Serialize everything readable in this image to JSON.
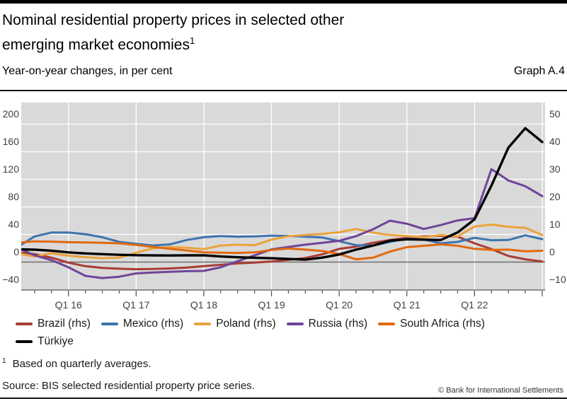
{
  "header": {
    "title_line1": "Nominal residential property prices in selected other",
    "title_line2": "emerging market economies",
    "title_footnote_marker": "1",
    "subtitle": "Year-on-year changes, in per cent",
    "graph_label": "Graph A.4"
  },
  "chart_data": {
    "type": "line",
    "title": "Nominal residential property prices in selected other emerging market economies",
    "ylabel_left": "Year-on-year changes, in per cent (Türkiye, lhs)",
    "ylabel_right": "Year-on-year changes, in per cent (rhs series)",
    "plot_bg": "#d9d9d9",
    "gridline_color": "#ffffff",
    "zero_line_color": "#6e6e6e",
    "axis_text_color": "#404040",
    "left_axis": {
      "ticks": [
        200,
        160,
        120,
        80,
        40,
        0,
        -40
      ],
      "tick_labels": [
        "200",
        "160",
        "120",
        "80",
        "40",
        "0",
        "−40"
      ],
      "range": [
        -41,
        231
      ]
    },
    "right_axis": {
      "ticks": [
        50,
        40,
        30,
        20,
        10,
        0,
        -10
      ],
      "tick_labels": [
        "50",
        "40",
        "30",
        "20",
        "10",
        "0",
        "−10"
      ],
      "range": [
        -10.25,
        57.75
      ]
    },
    "x_tick_labels": [
      "Q1 16",
      "Q1 17",
      "Q1 18",
      "Q1 19",
      "Q1 20",
      "Q1 21",
      "Q1 22"
    ],
    "quarters": [
      "Q2 15",
      "Q3 15",
      "Q4 15",
      "Q1 16",
      "Q2 16",
      "Q3 16",
      "Q4 16",
      "Q1 17",
      "Q2 17",
      "Q3 17",
      "Q4 17",
      "Q1 18",
      "Q2 18",
      "Q3 18",
      "Q4 18",
      "Q1 19",
      "Q2 19",
      "Q3 19",
      "Q4 19",
      "Q1 20",
      "Q2 20",
      "Q3 20",
      "Q4 20",
      "Q1 21",
      "Q2 21",
      "Q3 21",
      "Q4 21",
      "Q1 22",
      "Q2 22",
      "Q3 22",
      "Q4 22",
      "Q1 23"
    ],
    "series": [
      {
        "name": "Brazil (rhs)",
        "axis": "rhs",
        "color": "#a93c34",
        "values": [
          3.5,
          2.9,
          1.6,
          -0.2,
          -1.5,
          -2.1,
          -2.4,
          -2.6,
          -2.5,
          -2.3,
          -2.0,
          -1.5,
          -1.0,
          -0.5,
          -0.2,
          0.2,
          0.8,
          1.5,
          2.8,
          4.8,
          5.6,
          7.0,
          8.0,
          8.8,
          9.3,
          9.5,
          9.2,
          6.8,
          4.7,
          2.2,
          1.0,
          0.2
        ]
      },
      {
        "name": "Mexico (rhs)",
        "axis": "rhs",
        "color": "#3d74ae",
        "values": [
          5.5,
          9.3,
          10.7,
          10.7,
          10.1,
          9.0,
          7.3,
          6.6,
          6.0,
          6.4,
          8.0,
          9.0,
          9.4,
          9.2,
          9.3,
          9.6,
          9.5,
          9.2,
          8.9,
          7.6,
          6.1,
          6.0,
          7.3,
          8.5,
          8.2,
          6.8,
          7.3,
          8.8,
          7.9,
          8.0,
          9.7,
          8.3
        ]
      },
      {
        "name": "Poland (rhs)",
        "axis": "rhs",
        "color": "#eaa33c",
        "values": [
          3.1,
          2.0,
          3.2,
          2.3,
          1.8,
          1.4,
          1.6,
          3.4,
          5.0,
          5.4,
          5.2,
          4.7,
          6.0,
          6.3,
          6.1,
          8.1,
          9.4,
          9.8,
          10.2,
          10.8,
          12.0,
          10.7,
          9.8,
          9.4,
          9.0,
          9.8,
          9.3,
          12.9,
          13.6,
          12.8,
          12.4,
          9.8
        ]
      },
      {
        "name": "Russia (rhs)",
        "axis": "rhs",
        "color": "#6f4499",
        "values": [
          5.2,
          2.4,
          0.7,
          -1.9,
          -5.0,
          -5.8,
          -5.3,
          -4.1,
          -3.8,
          -3.5,
          -3.3,
          -3.2,
          -1.9,
          0.3,
          2.4,
          4.6,
          5.5,
          6.3,
          7.0,
          7.7,
          9.4,
          11.9,
          15.0,
          13.9,
          12.0,
          13.4,
          15.1,
          15.9,
          33.7,
          29.6,
          27.5,
          23.9
        ]
      },
      {
        "name": "South Africa (rhs)",
        "axis": "rhs",
        "color": "#e0690f",
        "values": [
          7.0,
          7.5,
          7.4,
          7.2,
          7.1,
          7.0,
          6.8,
          6.2,
          5.5,
          4.8,
          4.2,
          3.5,
          3.4,
          3.3,
          3.5,
          4.4,
          4.9,
          4.5,
          4.0,
          2.9,
          1.0,
          1.6,
          3.8,
          5.4,
          5.9,
          6.4,
          5.9,
          4.8,
          4.4,
          4.5,
          3.9,
          4.1
        ]
      },
      {
        "name": "Türkiye",
        "axis": "lhs",
        "color": "#000000",
        "values": [
          18.5,
          17.9,
          16.5,
          14.0,
          12.5,
          11.5,
          10.6,
          10.0,
          9.6,
          9.5,
          9.7,
          9.8,
          8.1,
          7.0,
          6.3,
          5.5,
          4.5,
          3.5,
          6.5,
          11.0,
          18.0,
          24.0,
          31.0,
          33.0,
          32.5,
          32.0,
          43.0,
          62.0,
          111.0,
          166.0,
          194.0,
          174.0
        ]
      }
    ],
    "legend_position": "bottom-left"
  },
  "footnote": {
    "marker": "1",
    "text": "Based on quarterly averages."
  },
  "source": "Source: BIS selected residential property price series.",
  "copyright": "© Bank for International Settlements"
}
